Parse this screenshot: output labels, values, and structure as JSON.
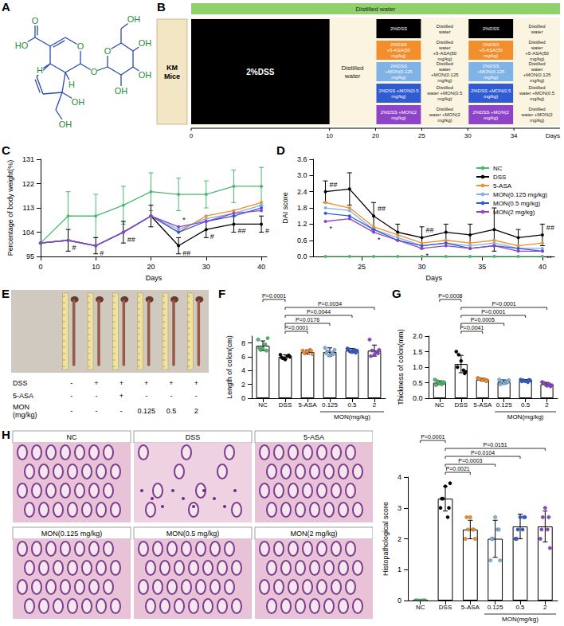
{
  "chart_data": [
    {
      "letter": "C",
      "type": "line",
      "x_label": "Days",
      "y_label": "Percentage of body weight(%)",
      "x": [
        0,
        5,
        10,
        15,
        20,
        25,
        30,
        35,
        40
      ],
      "xlim": [
        0,
        41
      ],
      "xticks": [
        0,
        10,
        20,
        30,
        40
      ],
      "ylim": [
        95,
        131
      ],
      "yticks": [
        95,
        104,
        113,
        122,
        131
      ],
      "grid": false,
      "marker": "circle",
      "series": [
        {
          "name": "NC",
          "color": "#4cb86e",
          "values": [
            100,
            110,
            110,
            114,
            119,
            118,
            118,
            121,
            121
          ],
          "errors": [
            0,
            9,
            8,
            7,
            7,
            6,
            5,
            6,
            7
          ]
        },
        {
          "name": "DSS",
          "color": "#000000",
          "values": [
            100,
            101,
            99,
            104,
            110,
            99,
            105,
            107,
            107
          ],
          "errors": [
            0,
            4,
            3,
            4,
            4,
            3,
            3,
            3,
            3
          ]
        },
        {
          "name": "5-ASA",
          "color": "#f28e2b",
          "values": [
            100,
            101,
            99,
            104,
            110,
            104,
            110,
            112,
            115
          ]
        },
        {
          "name": "MON(0.125 mg/kg)",
          "color": "#7fb2e5",
          "values": [
            100,
            101,
            99,
            104,
            110,
            105,
            109,
            111,
            114
          ]
        },
        {
          "name": "MON(0.5 mg/kg)",
          "color": "#2f5bd3",
          "values": [
            100,
            101,
            99,
            104,
            110,
            104,
            108,
            110,
            113
          ]
        },
        {
          "name": "MON(2 mg/kg)",
          "color": "#8e44c9",
          "values": [
            100,
            101,
            99,
            104,
            110,
            106,
            108,
            111,
            112
          ]
        }
      ],
      "annotations": [
        {
          "series": "DSS",
          "x": 5,
          "text": "#",
          "position": "below"
        },
        {
          "series": "DSS",
          "x": 10,
          "text": "#",
          "position": "below"
        },
        {
          "series": "DSS",
          "x": 15,
          "text": "##",
          "position": "below"
        },
        {
          "series": "DSS",
          "x": 25,
          "text": "##",
          "position": "below"
        },
        {
          "series": "DSS",
          "x": 30,
          "text": "#",
          "position": "below"
        },
        {
          "series": "DSS",
          "x": 35,
          "text": "##",
          "position": "below"
        },
        {
          "series": "DSS",
          "x": 40,
          "text": "#",
          "position": "below"
        },
        {
          "series": "MON(2 mg/kg)",
          "x": 25,
          "text": "*",
          "position": "above"
        }
      ]
    },
    {
      "letter": "D",
      "type": "line",
      "x_label": "Days",
      "y_label": "DAI score",
      "x": [
        22,
        24,
        26,
        28,
        30,
        32,
        34,
        36,
        38,
        40
      ],
      "xlim": [
        21,
        41
      ],
      "xticks": [
        25,
        30,
        35,
        40
      ],
      "ylim": [
        0,
        3.6
      ],
      "yticks": [
        {
          "value": 0,
          "label": "0.0"
        },
        0.6,
        1.2,
        1.8,
        2.4,
        {
          "value": 3,
          "label": "3.0"
        },
        3.6
      ],
      "grid": false,
      "marker": "circle",
      "legend": "top-right",
      "series": [
        {
          "name": "NC",
          "color": "#4cb86e",
          "values": [
            0,
            0,
            0,
            0,
            0,
            0,
            0,
            0,
            0,
            0
          ]
        },
        {
          "name": "DSS",
          "color": "#000000",
          "values": [
            2.4,
            2.5,
            1.5,
            0.9,
            0.7,
            0.9,
            0.8,
            1.0,
            0.7,
            0.8
          ],
          "errors": [
            0.4,
            0.6,
            0.5,
            0.3,
            0.4,
            0.3,
            0.4,
            0.8,
            0.3,
            0.4
          ]
        },
        {
          "name": "5-ASA",
          "color": "#f28e2b",
          "values": [
            2.0,
            1.8,
            1.1,
            0.8,
            0.5,
            0.6,
            0.5,
            0.6,
            0.4,
            0.5
          ]
        },
        {
          "name": "MON(0.125 mg/kg)",
          "color": "#7fb2e5",
          "values": [
            1.8,
            1.7,
            1.0,
            0.7,
            0.4,
            0.5,
            0.4,
            0.5,
            0.3,
            0.3
          ]
        },
        {
          "name": "MON(0.5 mg/kg)",
          "color": "#2f5bd3",
          "values": [
            1.6,
            1.5,
            1.0,
            0.6,
            0.4,
            0.5,
            0.3,
            0.4,
            0.3,
            0.2
          ]
        },
        {
          "name": "MON(2 mg/kg)",
          "color": "#8e44c9",
          "values": [
            1.3,
            1.4,
            0.9,
            0.6,
            0.3,
            0.4,
            0.3,
            0.4,
            0.2,
            0.2
          ]
        }
      ],
      "annotations": [
        {
          "series": "DSS",
          "x": 22,
          "text": "##",
          "position": "above"
        },
        {
          "series": "DSS",
          "x": 26,
          "text": "##",
          "position": "above"
        },
        {
          "series": "DSS",
          "x": 30,
          "text": "##",
          "position": "above"
        },
        {
          "series": "DSS",
          "x": 40,
          "text": "##",
          "position": "above"
        },
        {
          "series": "MON(2 mg/kg)",
          "x": 22,
          "text": "*",
          "position": "below"
        },
        {
          "series": "MON(2 mg/kg)",
          "x": 26,
          "text": "*",
          "position": "below"
        },
        {
          "series": "MON(2 mg/kg)",
          "x": 30,
          "text": "*",
          "position": "below"
        },
        {
          "series": "MON(2 mg/kg)",
          "x": 40,
          "text": "**",
          "position": "below"
        }
      ]
    },
    {
      "letter": "F",
      "type": "bar",
      "y_label": "Length of colon(cm)",
      "categories": [
        "NC",
        "DSS",
        "5-ASA",
        "0.125",
        "0.5",
        "2"
      ],
      "group_label": {
        "text": "MON(mg/kg)",
        "from": "0.125",
        "to": "2"
      },
      "ylim": [
        0,
        9
      ],
      "yticks": [
        0,
        2,
        4,
        6,
        8
      ],
      "grid": false,
      "marker": "circle",
      "values": [
        7.6,
        6.0,
        6.7,
        6.7,
        6.9,
        6.9
      ],
      "errors": [
        0.7,
        0.3,
        0.3,
        0.6,
        0.3,
        0.8
      ],
      "colors": [
        "#4cb86e",
        "#000000",
        "#f28e2b",
        "#7fb2e5",
        "#2f5bd3",
        "#8e44c9"
      ],
      "points": [
        [
          8.5,
          7.0,
          7.2,
          7.8,
          8.7,
          7.3,
          6.9
        ],
        [
          6.3,
          5.8,
          5.6,
          6.1,
          6.0,
          5.9,
          6.2
        ],
        [
          6.9,
          6.5,
          6.8,
          7.0,
          6.4,
          6.6,
          6.9
        ],
        [
          7.3,
          6.8,
          6.2,
          6.6,
          7.0,
          6.5,
          6.4
        ],
        [
          7.2,
          6.8,
          6.7,
          7.0,
          6.9,
          7.1,
          6.6
        ],
        [
          8.5,
          6.9,
          6.3,
          6.7,
          7.0,
          6.1,
          6.5
        ]
      ],
      "comparisons": [
        {
          "from": "DSS",
          "to": "5-ASA",
          "label": "P=0.0001"
        },
        {
          "from": "DSS",
          "to": "0.125",
          "label": "P=0.0176"
        },
        {
          "from": "DSS",
          "to": "0.5",
          "label": "P=0.0044"
        },
        {
          "from": "DSS",
          "to": "2",
          "label": "P=0.0034"
        },
        {
          "from": "NC",
          "to": "DSS",
          "label": "P=0.0001"
        }
      ]
    },
    {
      "letter": "G",
      "type": "bar",
      "y_label": "Thickness of colon(mm)",
      "categories": [
        "NC",
        "DSS",
        "5-ASA",
        "0.125",
        "0.5",
        "2"
      ],
      "group_label": {
        "text": "MON(mg/kg)",
        "from": "0.125",
        "to": "2"
      },
      "ylim": [
        0,
        2
      ],
      "yticks": [
        {
          "value": 0,
          "label": "0.0"
        },
        0.5,
        {
          "value": 1,
          "label": "1.0"
        },
        1.5,
        {
          "value": 2,
          "label": "2.0"
        }
      ],
      "grid": false,
      "marker": "circle",
      "values": [
        0.5,
        1.1,
        0.6,
        0.53,
        0.56,
        0.45
      ],
      "errors": [
        0.06,
        0.28,
        0.04,
        0.06,
        0.04,
        0.06
      ],
      "colors": [
        "#4cb86e",
        "#000000",
        "#f28e2b",
        "#7fb2e5",
        "#2f5bd3",
        "#8e44c9"
      ],
      "points": [
        [
          0.6,
          0.55,
          0.48,
          0.45,
          0.5,
          0.42,
          0.52
        ],
        [
          1.5,
          1.4,
          1.2,
          0.9,
          0.85,
          1.0,
          0.8
        ],
        [
          0.65,
          0.62,
          0.58,
          0.6,
          0.57,
          0.63,
          0.55
        ],
        [
          0.6,
          0.55,
          0.48,
          0.5,
          0.58,
          0.45,
          0.52
        ],
        [
          0.6,
          0.58,
          0.55,
          0.52,
          0.57,
          0.54,
          0.59
        ],
        [
          0.52,
          0.48,
          0.4,
          0.45,
          0.42,
          0.5,
          0.38
        ]
      ],
      "comparisons": [
        {
          "from": "DSS",
          "to": "5-ASA",
          "label": "P=0.0041"
        },
        {
          "from": "DSS",
          "to": "0.125",
          "label": "P=0.0005"
        },
        {
          "from": "DSS",
          "to": "0.5",
          "label": "P=0.0001"
        },
        {
          "from": "DSS",
          "to": "2",
          "label": "P=0.0001"
        },
        {
          "from": "NC",
          "to": "DSS",
          "label": "P=0.0008"
        }
      ]
    },
    {
      "type": "bar",
      "y_label": "Histopathological score",
      "categories": [
        "NC",
        "DSS",
        "5-ASA",
        "0.125",
        "0.5",
        "2"
      ],
      "group_label": {
        "text": "MON(mg/kg)",
        "from": "0.125",
        "to": "2"
      },
      "ylim": [
        0,
        4
      ],
      "yticks": [
        0,
        1,
        2,
        3,
        4
      ],
      "grid": false,
      "marker": "circle",
      "values": [
        0,
        3.3,
        2.3,
        2.0,
        2.4,
        2.4
      ],
      "errors": [
        0,
        0.4,
        0.3,
        0.6,
        0.4,
        0.5
      ],
      "colors": [
        "#4cb86e",
        "#000000",
        "#f28e2b",
        "#7fb2e5",
        "#2f5bd3",
        "#8e44c9"
      ],
      "points": [
        [
          0,
          0,
          0,
          0,
          0,
          0,
          0
        ],
        [
          3.0,
          3.3,
          3.7,
          2.7,
          3.8,
          3.3,
          3.0
        ],
        [
          2.0,
          2.3,
          2.7,
          2.3,
          2.0,
          2.7,
          2.3
        ],
        [
          1.3,
          2.0,
          2.7,
          2.3,
          1.3,
          2.0,
          2.3
        ],
        [
          2.0,
          2.3,
          2.7,
          2.3,
          2.7,
          2.0,
          2.7
        ],
        [
          2.0,
          2.7,
          3.0,
          2.3,
          1.7,
          2.3,
          2.7
        ]
      ],
      "comparisons": [
        {
          "from": "DSS",
          "to": "5-ASA",
          "label": "P=0.0021"
        },
        {
          "from": "DSS",
          "to": "0.125",
          "label": "P=0.0003"
        },
        {
          "from": "DSS",
          "to": "0.5",
          "label": "P=0.0104"
        },
        {
          "from": "DSS",
          "to": "2",
          "label": "P=0.0151"
        },
        {
          "from": "NC",
          "to": "DSS",
          "label": "P=0.0001"
        }
      ]
    }
  ],
  "structure": {
    "letter": "A",
    "atom_labels": [
      "O",
      "HO",
      "O",
      "H",
      "H",
      "O",
      "OH",
      "OH",
      "O",
      "OH",
      "OH",
      "OH",
      "OH"
    ]
  },
  "scheme": {
    "letter": "B",
    "mice": "KM Mice",
    "top_bar": "Distilled water",
    "induction": "2%DSS",
    "recovery": "Distilled water",
    "rows": [
      {
        "color": "#000000",
        "segments": [
          "2%DSS",
          "Distilled water",
          "2%DSS",
          "Distilled water"
        ]
      },
      {
        "color": "#f28e2b",
        "segments": [
          "2%DSS +5-ASA(50 mg/kg)",
          "Distilled water +5-ASA(50 mg/kg)",
          "2%DSS +5-ASA(50 mg/kg)",
          "Distilled water +5-ASA(50 mg/kg)"
        ]
      },
      {
        "color": "#7fb2e5",
        "segments": [
          "2%DSS +MON(0.125 mg/kg)",
          "Distilled water +MON(0.125 mg/kg)",
          "2%DSS +MON(0.125 mg/kg)",
          "Distilled water +MON(0.125 mg/kg)"
        ]
      },
      {
        "color": "#2f5bd3",
        "segments": [
          "2%DSS +MON(0.5 mg/kg)",
          "Distilled water +MON(0.5 mg/kg)",
          "2%DSS +MON(0.5 mg/kg)",
          "Distilled water +MON(0.5 mg/kg)"
        ]
      },
      {
        "color": "#8e44c9",
        "segments": [
          "2%DSS +MON(2 mg/kg)",
          "Distilled water +MON(2 mg/kg)",
          "2%DSS +MON(2 mg/kg)",
          "Distilled water +MON(2 mg/kg)"
        ]
      }
    ],
    "ticks": [
      0,
      10,
      20,
      25,
      30,
      34
    ],
    "axis_label": "Days"
  },
  "photo": {
    "letter": "E",
    "rows": [
      {
        "label": "DSS",
        "cells": [
          "-",
          "+",
          "+",
          "+",
          "+",
          "+"
        ]
      },
      {
        "label": "5-ASA",
        "cells": [
          "-",
          "-",
          "+",
          "-",
          "-",
          "-"
        ]
      },
      {
        "label": "MON (mg/kg)",
        "cells": [
          "-",
          "-",
          "-",
          "0.125",
          "0.5",
          "2"
        ]
      }
    ]
  },
  "histology": {
    "letter": "H",
    "images": [
      "NC",
      "DSS",
      "5-ASA",
      "MON(0.125 mg/kg)",
      "MON(0.5 mg/kg)",
      "MON(2 mg/kg)"
    ]
  }
}
